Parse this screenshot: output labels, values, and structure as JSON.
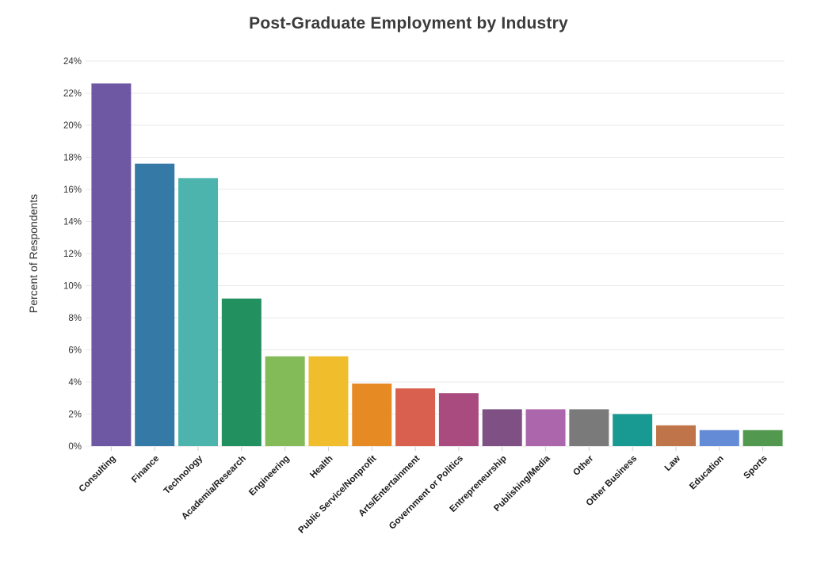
{
  "chart_data": {
    "type": "bar",
    "title": "Post-Graduate Employment by Industry",
    "xlabel": "",
    "ylabel": "Percent of Respondents",
    "ylim": [
      0,
      24
    ],
    "ytick_step": 2,
    "yticks": [
      "0%",
      "2%",
      "4%",
      "6%",
      "8%",
      "10%",
      "12%",
      "14%",
      "16%",
      "18%",
      "20%",
      "22%",
      "24%"
    ],
    "grid": true,
    "grid_color": "#e8e8e8",
    "tick_color": "#d0d0d0",
    "axis_text_color": "#333333",
    "category_text_color": "#1a1a1a",
    "title_color": "#3b3b3b",
    "legend": "none",
    "categories": [
      "Consulting",
      "Finance",
      "Technology",
      "Academia/Research",
      "Engineering",
      "Health",
      "Public Service/Nonprofit",
      "Arts/Entertainment",
      "Government or Politics",
      "Entrepreneurship",
      "Publishing/Media",
      "Other",
      "Other Business",
      "Law",
      "Education",
      "Sports"
    ],
    "values": [
      22.6,
      17.6,
      16.7,
      9.2,
      5.6,
      5.6,
      3.9,
      3.6,
      3.3,
      2.3,
      2.3,
      2.3,
      2.0,
      1.3,
      1.0,
      1.0
    ],
    "colors": [
      "#6e58a3",
      "#3579a6",
      "#4db4ad",
      "#23915f",
      "#82bb57",
      "#f0bd2d",
      "#e68a23",
      "#d9604e",
      "#a94b7e",
      "#7e5083",
      "#ab66ac",
      "#7a7a7a",
      "#189a92",
      "#c0744a",
      "#648bd5",
      "#52984f"
    ]
  }
}
